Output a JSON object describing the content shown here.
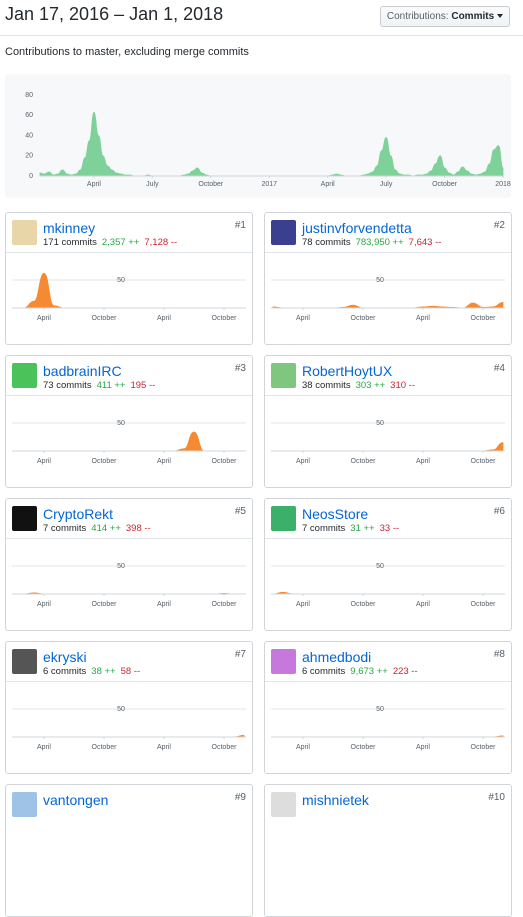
{
  "header": {
    "date_range": "Jan 17, 2016 – Jan 1, 2018",
    "dropdown_label": "Contributions:",
    "dropdown_value": "Commits"
  },
  "subtitle": "Contributions to master, excluding merge commits",
  "overview_chart": {
    "type": "area",
    "color": "#7fd19a",
    "values": [
      3,
      2,
      4,
      1,
      2,
      6,
      2,
      1,
      2,
      6,
      18,
      35,
      63,
      40,
      20,
      10,
      6,
      3,
      2,
      1,
      1,
      0,
      0,
      0,
      1,
      0,
      0,
      0,
      0,
      0,
      0,
      0,
      1,
      2,
      5,
      8,
      3,
      1,
      0,
      0,
      0,
      0,
      0,
      0,
      0,
      0,
      0,
      0,
      0,
      0,
      0,
      0,
      0,
      0,
      0,
      0,
      0,
      0,
      0,
      0,
      0,
      0,
      0,
      0,
      0,
      1,
      2,
      1,
      0,
      0,
      0,
      0,
      1,
      2,
      4,
      10,
      25,
      38,
      20,
      6,
      2,
      1,
      1,
      0,
      1,
      1,
      2,
      5,
      12,
      20,
      8,
      3,
      1,
      4,
      9,
      5,
      2,
      1,
      2,
      4,
      12,
      26,
      30,
      8
    ],
    "xlim": [
      0,
      103
    ],
    "xticks": [
      {
        "value": 12,
        "label": "April"
      },
      {
        "value": 25,
        "label": "July"
      },
      {
        "value": 38,
        "label": "October"
      },
      {
        "value": 51,
        "label": "2017"
      },
      {
        "value": 64,
        "label": "April"
      },
      {
        "value": 77,
        "label": "July"
      },
      {
        "value": 90,
        "label": "October"
      },
      {
        "value": 103,
        "label": "2018"
      }
    ],
    "ylim": [
      0,
      86
    ],
    "yticks": [
      0,
      20,
      40,
      60,
      80
    ]
  },
  "contributors": [
    {
      "rank": "#1",
      "name": "mkinney",
      "commits": "171 commits",
      "additions": "2,357 ++",
      "deletions": "7,128 --",
      "chart": {
        "type": "area",
        "color": "#f68a33",
        "values": [
          0,
          0,
          12,
          62,
          4,
          0,
          0,
          0,
          0,
          0,
          0,
          0,
          0,
          0,
          0,
          0,
          0,
          0,
          0,
          0,
          0,
          0,
          0,
          0
        ],
        "xlim": [
          0,
          23
        ],
        "ylim": [
          0,
          93
        ],
        "yticks": [
          50
        ],
        "xticks": [
          {
            "value": 3,
            "label": "April"
          },
          {
            "value": 9,
            "label": "October"
          },
          {
            "value": 15,
            "label": "April"
          },
          {
            "value": 21,
            "label": "October"
          }
        ]
      }
    },
    {
      "rank": "#2",
      "name": "justinvforvendetta",
      "commits": "78 commits",
      "additions": "783,950 ++",
      "deletions": "7,643 --",
      "chart": {
        "type": "area",
        "color": "#f68a33",
        "values": [
          2,
          0,
          0,
          0,
          0,
          0,
          0,
          1,
          5,
          0,
          0,
          0,
          0,
          0,
          0,
          2,
          3,
          2,
          1,
          0,
          9,
          1,
          2,
          10
        ],
        "xlim": [
          0,
          23
        ],
        "ylim": [
          0,
          93
        ],
        "yticks": [
          50
        ],
        "xticks": [
          {
            "value": 3,
            "label": "April"
          },
          {
            "value": 9,
            "label": "October"
          },
          {
            "value": 15,
            "label": "April"
          },
          {
            "value": 21,
            "label": "October"
          }
        ]
      }
    },
    {
      "rank": "#3",
      "name": "badbrainIRC",
      "commits": "73 commits",
      "additions": "411 ++",
      "deletions": "195 --",
      "chart": {
        "type": "area",
        "color": "#f68a33",
        "values": [
          0,
          0,
          0,
          0,
          0,
          0,
          0,
          0,
          0,
          0,
          0,
          0,
          0,
          0,
          0,
          0,
          0,
          4,
          34,
          0,
          0,
          0,
          0,
          0
        ],
        "xlim": [
          0,
          23
        ],
        "ylim": [
          0,
          93
        ],
        "yticks": [
          50
        ],
        "xticks": [
          {
            "value": 3,
            "label": "April"
          },
          {
            "value": 9,
            "label": "October"
          },
          {
            "value": 15,
            "label": "April"
          },
          {
            "value": 21,
            "label": "October"
          }
        ]
      }
    },
    {
      "rank": "#4",
      "name": "RobertHoytUX",
      "commits": "38 commits",
      "additions": "303 ++",
      "deletions": "310 --",
      "chart": {
        "type": "area",
        "color": "#f68a33",
        "values": [
          0,
          0,
          0,
          0,
          0,
          0,
          0,
          0,
          0,
          0,
          0,
          0,
          0,
          0,
          0,
          0,
          0,
          0,
          0,
          0,
          0,
          0,
          2,
          15
        ],
        "xlim": [
          0,
          23
        ],
        "ylim": [
          0,
          93
        ],
        "yticks": [
          50
        ],
        "xticks": [
          {
            "value": 3,
            "label": "April"
          },
          {
            "value": 9,
            "label": "October"
          },
          {
            "value": 15,
            "label": "April"
          },
          {
            "value": 21,
            "label": "October"
          }
        ]
      }
    },
    {
      "rank": "#5",
      "name": "CryptoRekt",
      "commits": "7 commits",
      "additions": "414 ++",
      "deletions": "398 --",
      "chart": {
        "type": "area",
        "color": "#f68a33",
        "values": [
          0,
          0,
          2,
          0,
          0,
          0,
          0,
          0,
          0,
          0,
          0,
          0,
          0,
          0,
          0,
          0,
          0,
          0,
          0,
          0,
          0,
          1,
          0,
          0
        ],
        "xlim": [
          0,
          23
        ],
        "ylim": [
          0,
          93
        ],
        "yticks": [
          50
        ],
        "xticks": [
          {
            "value": 3,
            "label": "April"
          },
          {
            "value": 9,
            "label": "October"
          },
          {
            "value": 15,
            "label": "April"
          },
          {
            "value": 21,
            "label": "October"
          }
        ]
      }
    },
    {
      "rank": "#6",
      "name": "NeosStore",
      "commits": "7 commits",
      "additions": "31 ++",
      "deletions": "33 --",
      "chart": {
        "type": "area",
        "color": "#f68a33",
        "values": [
          0,
          3,
          0,
          0,
          0,
          0,
          0,
          0,
          0,
          0,
          0,
          0,
          0,
          0,
          0,
          0,
          0,
          0,
          0,
          0,
          0,
          0,
          0,
          0
        ],
        "xlim": [
          0,
          23
        ],
        "ylim": [
          0,
          93
        ],
        "yticks": [
          50
        ],
        "xticks": [
          {
            "value": 3,
            "label": "April"
          },
          {
            "value": 9,
            "label": "October"
          },
          {
            "value": 15,
            "label": "April"
          },
          {
            "value": 21,
            "label": "October"
          }
        ]
      }
    },
    {
      "rank": "#7",
      "name": "ekryski",
      "commits": "6 commits",
      "additions": "38 ++",
      "deletions": "58 --",
      "chart": {
        "type": "area",
        "color": "#f68a33",
        "values": [
          0,
          0,
          0,
          0,
          0,
          0,
          0,
          0,
          0,
          0,
          0,
          0,
          0,
          0,
          0,
          0,
          0,
          0,
          0,
          0,
          0,
          0,
          0,
          3
        ],
        "xlim": [
          0,
          23
        ],
        "ylim": [
          0,
          93
        ],
        "yticks": [
          50
        ],
        "xticks": [
          {
            "value": 3,
            "label": "April"
          },
          {
            "value": 9,
            "label": "October"
          },
          {
            "value": 15,
            "label": "April"
          },
          {
            "value": 21,
            "label": "October"
          }
        ]
      }
    },
    {
      "rank": "#8",
      "name": "ahmedbodi",
      "commits": "6 commits",
      "additions": "9,673 ++",
      "deletions": "223 --",
      "chart": {
        "type": "area",
        "color": "#f68a33",
        "values": [
          0,
          0,
          0,
          0,
          0,
          0,
          0,
          0,
          0,
          0,
          0,
          0,
          0,
          0,
          0,
          0,
          0,
          0,
          0,
          0,
          0,
          0,
          0,
          2
        ],
        "xlim": [
          0,
          23
        ],
        "ylim": [
          0,
          93
        ],
        "yticks": [
          50
        ],
        "xticks": [
          {
            "value": 3,
            "label": "April"
          },
          {
            "value": 9,
            "label": "October"
          },
          {
            "value": 15,
            "label": "April"
          },
          {
            "value": 21,
            "label": "October"
          }
        ]
      }
    },
    {
      "rank": "#9",
      "name": "vantongen"
    },
    {
      "rank": "#10",
      "name": "mishnietek"
    }
  ]
}
